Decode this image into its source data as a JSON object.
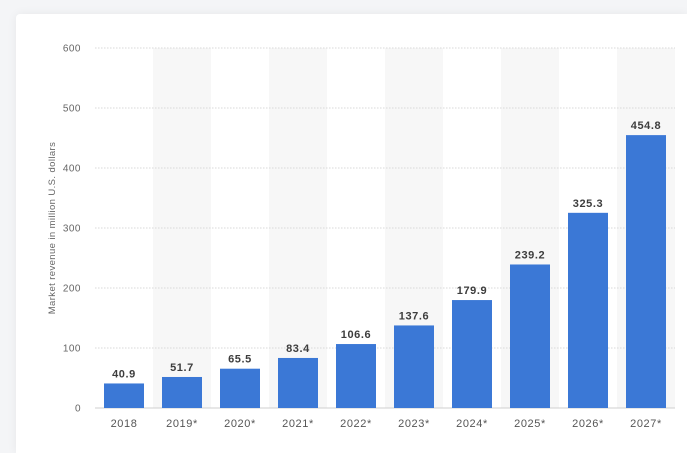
{
  "chart_data": {
    "type": "bar",
    "categories": [
      "2018",
      "2019*",
      "2020*",
      "2021*",
      "2022*",
      "2023*",
      "2024*",
      "2025*",
      "2026*",
      "2027*"
    ],
    "values": [
      40.9,
      51.7,
      65.5,
      83.4,
      106.6,
      137.6,
      179.9,
      239.2,
      325.3,
      454.8
    ],
    "data_labels": [
      "40.9",
      "51.7",
      "65.5",
      "83.4",
      "106.6",
      "137.6",
      "179.9",
      "239.2",
      "325.3",
      "454.8"
    ],
    "ylabel": "Market revenue in million U.S. dollars",
    "xlabel": "",
    "ylim": [
      0,
      600
    ],
    "yticks": [
      0,
      100,
      200,
      300,
      400,
      500,
      600
    ],
    "grid": true,
    "legend": "none",
    "bar_color": "#3b78d6"
  }
}
